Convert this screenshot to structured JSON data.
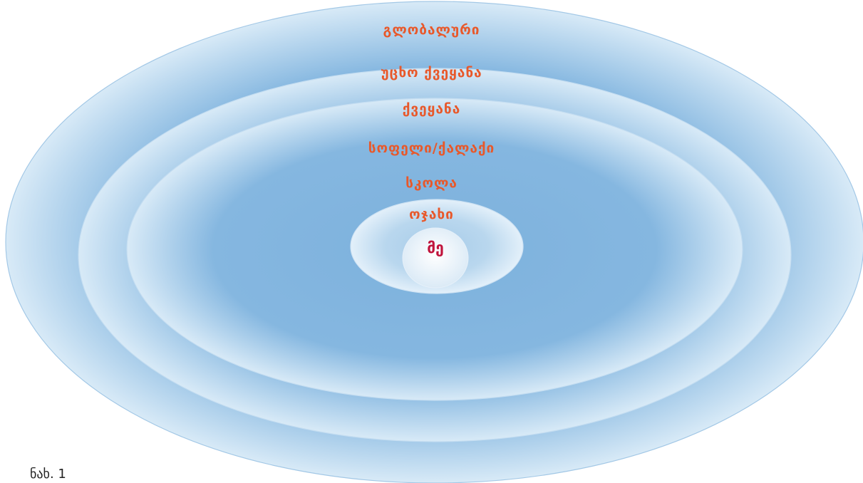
{
  "levels": [
    {
      "key": "global",
      "label": "გლობალური"
    },
    {
      "key": "foreign",
      "label": "უცხო ქვეყანა"
    },
    {
      "key": "country",
      "label": "ქვეყანა"
    },
    {
      "key": "village_city",
      "label": "სოფელი/ქალაქი"
    },
    {
      "key": "school",
      "label": "სკოლა"
    },
    {
      "key": "family",
      "label": "ოჯახი"
    }
  ],
  "center_label": "მე",
  "caption": "ნახ. 1",
  "colors": {
    "label": "#e8582a",
    "center_label": "#c0143c",
    "ring_edge": "#d2e6f5",
    "ring_core": "#7db1dd",
    "ring_stroke": "#9fc6e6"
  }
}
